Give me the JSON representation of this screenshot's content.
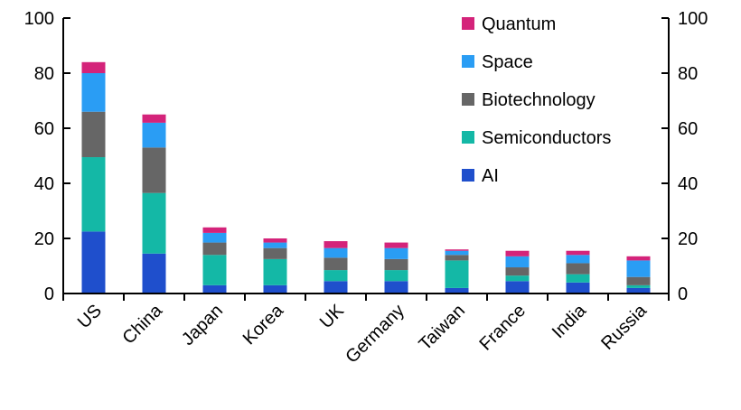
{
  "chart_data": {
    "type": "bar",
    "stacked": true,
    "categories": [
      "US",
      "China",
      "Japan",
      "Korea",
      "UK",
      "Germany",
      "Taiwan",
      "France",
      "India",
      "Russia"
    ],
    "series": [
      {
        "name": "AI",
        "color": "#1f4fcc",
        "values": [
          22.5,
          14.5,
          3,
          3,
          4.5,
          4.5,
          2,
          4.5,
          4,
          2
        ]
      },
      {
        "name": "Semiconductors",
        "color": "#14b8a6",
        "values": [
          27,
          22,
          11,
          9.5,
          4,
          4,
          10,
          2,
          3,
          1
        ]
      },
      {
        "name": "Biotechnology",
        "color": "#666666",
        "values": [
          16.5,
          16.5,
          4.5,
          4,
          4.5,
          4,
          2,
          3,
          4,
          3
        ]
      },
      {
        "name": "Space",
        "color": "#2a9df4",
        "values": [
          14,
          9,
          3.5,
          2,
          3.5,
          4,
          1.5,
          4,
          3,
          6
        ]
      },
      {
        "name": "Quantum",
        "color": "#d4237a",
        "values": [
          4,
          3,
          2,
          1.5,
          2.5,
          2,
          0.5,
          2,
          1.5,
          1.5
        ]
      }
    ],
    "ylim": [
      0,
      100
    ],
    "yticks": [
      0,
      20,
      40,
      60,
      80,
      100
    ],
    "legend_position": "top-right",
    "title": "",
    "xlabel": "",
    "ylabel": ""
  }
}
